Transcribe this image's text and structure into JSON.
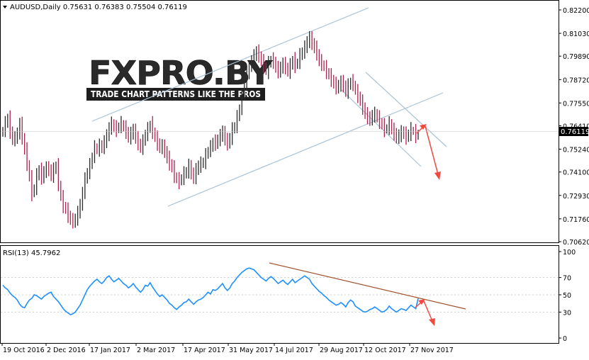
{
  "symbol_line": "AUDUSD,Daily  0.75631 0.76383 0.75504 0.76119",
  "rsi_label": "RSI(13) 45.7962",
  "current_price": "0.76119",
  "logo": {
    "main": "FXPRO.BY",
    "tagline": "TRADE CHART PATTERNS LIKE THE PROS"
  },
  "colors": {
    "background": "#ffffff",
    "bull_candle": "#2b2b2b",
    "bear_candle": "#b0224e",
    "channel_lines": "#a9c3d6",
    "forecast_arrows": "#f04a40",
    "rsi_line": "#1e90ff",
    "rsi_trendline": "#a0522d",
    "price_badge": "#000000"
  },
  "chart_data": [
    {
      "type": "candlestick",
      "title": "AUDUSD,Daily",
      "ohlc_last": {
        "open": 0.75631,
        "high": 0.76383,
        "low": 0.75504,
        "close": 0.76119
      },
      "y_ticks": [
        "0.82200",
        "0.81030",
        "0.79890",
        "0.78720",
        "0.77550",
        "0.76410",
        "0.75240",
        "0.74100",
        "0.72930",
        "0.71760",
        "0.70620"
      ],
      "ylim": [
        0.7062,
        0.822
      ],
      "x_ticks": [
        "19 Oct 2016",
        "2 Dec 2016",
        "17 Jan 2017",
        "2 Mar 2017",
        "17 Apr 2017",
        "31 May 2017",
        "14 Jul 2017",
        "29 Aug 2017",
        "12 Oct 2017",
        "27 Nov 2017"
      ],
      "close_series": [
        0.762,
        0.765,
        0.768,
        0.761,
        0.757,
        0.758,
        0.76,
        0.765,
        0.758,
        0.752,
        0.745,
        0.738,
        0.73,
        0.733,
        0.739,
        0.742,
        0.738,
        0.741,
        0.743,
        0.742,
        0.739,
        0.742,
        0.744,
        0.735,
        0.728,
        0.724,
        0.722,
        0.719,
        0.717,
        0.716,
        0.717,
        0.721,
        0.724,
        0.731,
        0.737,
        0.741,
        0.744,
        0.749,
        0.753,
        0.752,
        0.754,
        0.753,
        0.756,
        0.759,
        0.763,
        0.765,
        0.763,
        0.762,
        0.764,
        0.765,
        0.763,
        0.761,
        0.758,
        0.76,
        0.762,
        0.758,
        0.755,
        0.753,
        0.756,
        0.76,
        0.762,
        0.765,
        0.761,
        0.758,
        0.755,
        0.753,
        0.754,
        0.751,
        0.748,
        0.745,
        0.743,
        0.739,
        0.737,
        0.736,
        0.738,
        0.74,
        0.741,
        0.744,
        0.74,
        0.738,
        0.742,
        0.744,
        0.745,
        0.746,
        0.749,
        0.752,
        0.753,
        0.756,
        0.755,
        0.757,
        0.759,
        0.761,
        0.757,
        0.755,
        0.758,
        0.762,
        0.764,
        0.768,
        0.773,
        0.779,
        0.785,
        0.79,
        0.794,
        0.796,
        0.799,
        0.801,
        0.799,
        0.796,
        0.794,
        0.791,
        0.795,
        0.797,
        0.796,
        0.793,
        0.791,
        0.793,
        0.795,
        0.793,
        0.791,
        0.794,
        0.797,
        0.794,
        0.796,
        0.799,
        0.801,
        0.803,
        0.806,
        0.808,
        0.805,
        0.803,
        0.8,
        0.796,
        0.795,
        0.793,
        0.791,
        0.789,
        0.787,
        0.785,
        0.783,
        0.784,
        0.786,
        0.784,
        0.781,
        0.784,
        0.786,
        0.785,
        0.781,
        0.779,
        0.776,
        0.773,
        0.77,
        0.768,
        0.767,
        0.769,
        0.77,
        0.768,
        0.766,
        0.764,
        0.762,
        0.763,
        0.765,
        0.762,
        0.76,
        0.758,
        0.759,
        0.761,
        0.76,
        0.758,
        0.76,
        0.762,
        0.761,
        0.759,
        0.76
      ],
      "annotations": [
        "upper ascending channel line",
        "lower ascending channel line",
        "descending channel",
        "red forecast arrows"
      ]
    },
    {
      "type": "line",
      "title": "RSI(13) 45.7962",
      "ylim": [
        0,
        100
      ],
      "y_ticks": [
        "100",
        "70",
        "50",
        "30",
        "0"
      ],
      "values": [
        61,
        58,
        56,
        52,
        49,
        47,
        44,
        39,
        36,
        35,
        40,
        44,
        46,
        50,
        49,
        47,
        45,
        48,
        50,
        52,
        53,
        48,
        45,
        42,
        38,
        34,
        31,
        29,
        27,
        28,
        30,
        34,
        38,
        44,
        50,
        56,
        60,
        63,
        66,
        68,
        65,
        63,
        66,
        70,
        72,
        68,
        65,
        67,
        69,
        66,
        63,
        61,
        58,
        60,
        63,
        59,
        56,
        53,
        56,
        61,
        60,
        64,
        59,
        55,
        51,
        48,
        50,
        47,
        44,
        40,
        38,
        35,
        33,
        36,
        38,
        41,
        42,
        45,
        42,
        39,
        42,
        44,
        45,
        47,
        50,
        53,
        51,
        56,
        55,
        57,
        60,
        63,
        58,
        55,
        58,
        63,
        66,
        70,
        73,
        76,
        78,
        80,
        81,
        80,
        79,
        76,
        73,
        70,
        68,
        66,
        69,
        71,
        69,
        66,
        63,
        65,
        67,
        64,
        62,
        65,
        68,
        64,
        66,
        68,
        70,
        72,
        70,
        68,
        63,
        60,
        57,
        54,
        52,
        49,
        47,
        44,
        42,
        40,
        38,
        39,
        41,
        39,
        36,
        41,
        44,
        42,
        37,
        35,
        33,
        31,
        30,
        31,
        33,
        34,
        36,
        34,
        32,
        30,
        31,
        33,
        37,
        34,
        32,
        30,
        32,
        34,
        33,
        32,
        35,
        38,
        36,
        34,
        46
      ]
    }
  ]
}
